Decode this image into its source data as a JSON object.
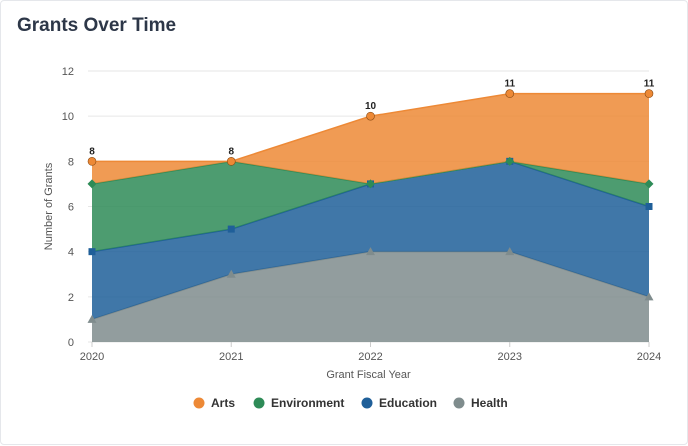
{
  "title": "Grants Over Time",
  "chart_data": {
    "type": "area",
    "stacked": true,
    "xlabel": "Grant Fiscal Year",
    "ylabel": "Number of Grants",
    "categories": [
      "2020",
      "2021",
      "2022",
      "2023",
      "2024"
    ],
    "ylim": [
      0,
      12
    ],
    "yticks": [
      0,
      2,
      4,
      6,
      8,
      10,
      12
    ],
    "grid": true,
    "legend_position": "bottom",
    "series": [
      {
        "name": "Health",
        "values": [
          1,
          3,
          4,
          4,
          2
        ],
        "color": "#7f8c8d",
        "marker": "triangle"
      },
      {
        "name": "Education",
        "values": [
          3,
          2,
          3,
          4,
          4
        ],
        "color": "#1f5f99",
        "marker": "square"
      },
      {
        "name": "Environment",
        "values": [
          3,
          3,
          0,
          0,
          1
        ],
        "color": "#2e8b57",
        "marker": "diamond"
      },
      {
        "name": "Arts",
        "values": [
          1,
          0,
          3,
          3,
          4
        ],
        "color": "#ed8936",
        "marker": "circle"
      }
    ],
    "legend_order": [
      "Arts",
      "Environment",
      "Education",
      "Health"
    ],
    "totals": [
      "8",
      "8",
      "10",
      "11",
      "11"
    ]
  }
}
